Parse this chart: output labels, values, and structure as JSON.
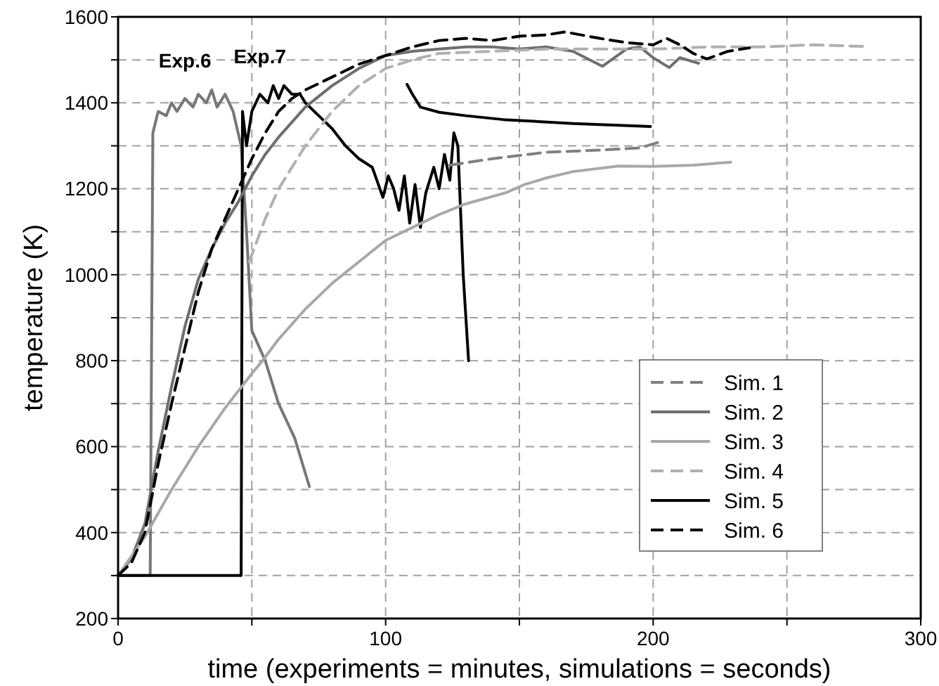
{
  "chart_data": {
    "type": "line",
    "xlabel": "time (experiments = minutes, simulations = seconds)",
    "ylabel": "temperature (K)",
    "xlim": [
      0,
      300
    ],
    "xticks": [
      0,
      {
        "value": 50,
        "label": null
      },
      100,
      {
        "value": 150,
        "label": null
      },
      200,
      {
        "value": 250,
        "label": null
      },
      300
    ],
    "ylim": [
      200,
      1600
    ],
    "yticks": [
      200,
      {
        "value": 300,
        "label": null
      },
      400,
      {
        "value": 500,
        "label": null
      },
      600,
      {
        "value": 700,
        "label": null
      },
      800,
      {
        "value": 900,
        "label": null
      },
      1000,
      {
        "value": 1100,
        "label": null
      },
      1200,
      {
        "value": 1300,
        "label": null
      },
      1400,
      {
        "value": 1500,
        "label": null
      },
      1600
    ],
    "grid": true,
    "legend": "right",
    "marker": "none",
    "annotations": [
      {
        "text": "Exp.6",
        "x": 25,
        "y": 1410
      },
      {
        "text": "Exp.7",
        "x": 53,
        "y": 1420
      }
    ],
    "series": [
      {
        "color": "#777777",
        "line_style": "solid",
        "x": [
          0,
          12,
          13,
          15,
          18,
          20,
          22,
          25,
          28,
          30,
          33,
          35,
          37,
          40,
          43,
          46,
          48,
          50,
          55,
          60,
          66,
          71.5
        ],
        "values": [
          300,
          300,
          1330,
          1380,
          1370,
          1400,
          1380,
          1410,
          1390,
          1420,
          1400,
          1430,
          1390,
          1420,
          1380,
          1300,
          1100,
          870,
          800,
          700,
          620,
          507
        ]
      },
      {
        "color": "#000000",
        "line_style": "solid",
        "x": [
          0,
          46,
          46.5,
          48,
          50,
          53,
          56,
          58,
          60,
          62,
          65,
          68,
          70,
          75,
          80,
          85,
          90,
          95,
          99,
          101,
          103,
          105,
          107,
          109,
          111,
          113,
          115,
          118,
          120,
          122,
          124,
          125.5,
          127,
          129,
          131
        ],
        "values": [
          300,
          300,
          1380,
          1300,
          1380,
          1420,
          1400,
          1440,
          1410,
          1440,
          1420,
          1420,
          1400,
          1370,
          1340,
          1300,
          1270,
          1250,
          1180,
          1230,
          1200,
          1150,
          1230,
          1120,
          1210,
          1110,
          1190,
          1250,
          1200,
          1280,
          1220,
          1330,
          1300,
          1000,
          800
        ]
      },
      {
        "name": "Sim. 1",
        "color": "#808080",
        "line_style": "dashed",
        "x": [
          124,
          140,
          160,
          180,
          195,
          203
        ],
        "values": [
          1255,
          1270,
          1285,
          1290,
          1295,
          1310
        ]
      },
      {
        "name": "Sim. 2",
        "color": "#6e6e6e",
        "line_style": "solid",
        "x": [
          0,
          5,
          10,
          15,
          20,
          25,
          30,
          35,
          40,
          45,
          50,
          55,
          60,
          70,
          80,
          90,
          100,
          110,
          120,
          130,
          140,
          150,
          160,
          170,
          181,
          190,
          195,
          200,
          206,
          210,
          217
        ],
        "values": [
          300,
          340,
          420,
          590,
          740,
          880,
          990,
          1060,
          1120,
          1170,
          1230,
          1280,
          1320,
          1390,
          1440,
          1480,
          1510,
          1520,
          1525,
          1530,
          1530,
          1525,
          1530,
          1520,
          1485,
          1525,
          1530,
          1505,
          1482,
          1505,
          1492
        ]
      },
      {
        "name": "Sim. 3",
        "color": "#a8a8a8",
        "line_style": "solid",
        "x": [
          0,
          10,
          20,
          30,
          40,
          50,
          54,
          60,
          70,
          80,
          90,
          100,
          110,
          120,
          130,
          145,
          152,
          160,
          170,
          187,
          200,
          215,
          229
        ],
        "values": [
          300,
          390,
          500,
          600,
          690,
          770,
          800,
          850,
          920,
          980,
          1030,
          1080,
          1110,
          1140,
          1165,
          1191,
          1210,
          1225,
          1240,
          1253,
          1252,
          1255,
          1262
        ]
      },
      {
        "name": "Sim. 4",
        "color": "#b0b0b0",
        "line_style": "dashed",
        "x": [
          49,
          55,
          60,
          70,
          80,
          90,
          100,
          110,
          120,
          140,
          160,
          180,
          200,
          220,
          240,
          260,
          280
        ],
        "values": [
          1030,
          1130,
          1200,
          1300,
          1380,
          1440,
          1480,
          1500,
          1515,
          1520,
          1525,
          1525,
          1525,
          1530,
          1530,
          1535,
          1531
        ]
      },
      {
        "name": "Sim. 5",
        "color": "#000000",
        "line_style": "solid",
        "x": [
          108,
          110,
          113,
          120,
          130,
          144,
          170,
          199
        ],
        "values": [
          1443,
          1420,
          1390,
          1378,
          1370,
          1361,
          1352,
          1345
        ]
      },
      {
        "name": "Sim. 6",
        "color": "#000000",
        "line_style": "dashed",
        "x": [
          0,
          5,
          10,
          15,
          20,
          25,
          30,
          35,
          40,
          45,
          50,
          55,
          60,
          65,
          70,
          80,
          90,
          100,
          110,
          120,
          130,
          140,
          150,
          160,
          167,
          180,
          190,
          200,
          205,
          210,
          215,
          220,
          228,
          236
        ],
        "values": [
          300,
          330,
          400,
          560,
          700,
          830,
          960,
          1060,
          1130,
          1200,
          1270,
          1330,
          1380,
          1410,
          1430,
          1460,
          1490,
          1510,
          1530,
          1545,
          1550,
          1545,
          1555,
          1558,
          1565,
          1550,
          1540,
          1535,
          1550,
          1535,
          1515,
          1502,
          1520,
          1528
        ]
      }
    ]
  }
}
